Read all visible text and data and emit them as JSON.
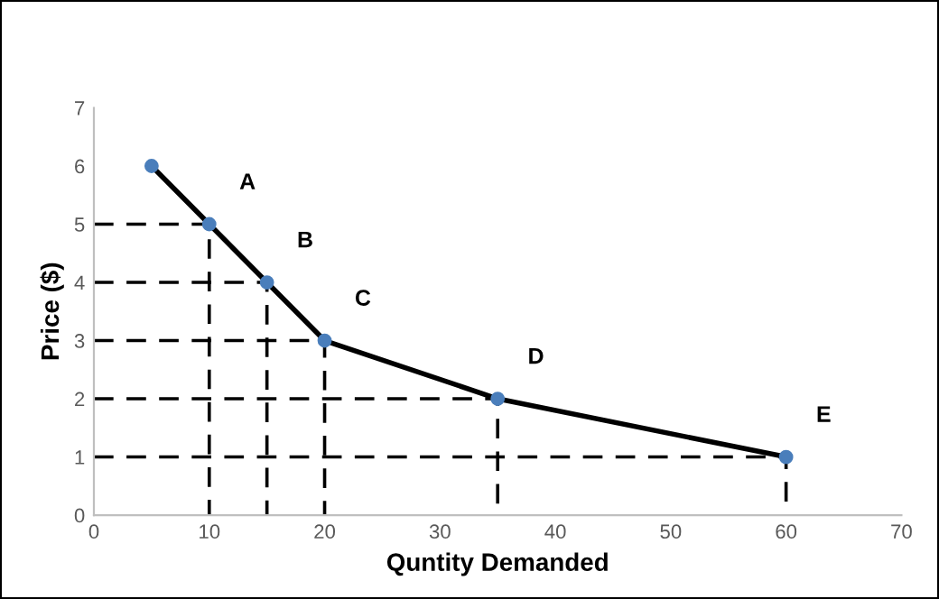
{
  "chart_data": {
    "type": "line",
    "xlabel": "Quntity Demanded",
    "ylabel": "Price ($)",
    "xlim": [
      0,
      70
    ],
    "xticks": [
      0,
      10,
      20,
      30,
      40,
      50,
      60,
      70
    ],
    "ylim": [
      0,
      7
    ],
    "yticks": [
      0,
      1,
      2,
      3,
      4,
      5,
      6,
      7
    ],
    "grid": false,
    "series": [
      {
        "color": "#000000",
        "marker": "none",
        "line_style": "solid",
        "x": [
          5,
          10,
          15,
          20,
          35,
          60
        ],
        "values": [
          6,
          5,
          4,
          3,
          2,
          1
        ]
      },
      {
        "color": "#000000",
        "marker": "none",
        "line_style": "dashed",
        "x": [
          0,
          10,
          10
        ],
        "values": [
          5,
          5,
          0
        ]
      },
      {
        "color": "#000000",
        "marker": "none",
        "line_style": "dashed",
        "x": [
          0,
          15,
          15
        ],
        "values": [
          4,
          4,
          0
        ]
      },
      {
        "color": "#000000",
        "marker": "none",
        "line_style": "dashed",
        "x": [
          0,
          20,
          20
        ],
        "values": [
          3,
          3,
          0
        ]
      },
      {
        "color": "#000000",
        "marker": "none",
        "line_style": "dashed",
        "x": [
          0,
          35,
          35
        ],
        "values": [
          2,
          2,
          0
        ]
      },
      {
        "color": "#000000",
        "marker": "none",
        "line_style": "dashed",
        "x": [
          0,
          60,
          60
        ],
        "values": [
          1,
          1,
          0
        ]
      },
      {
        "type": "scatter",
        "color": "#4a7ebb",
        "marker": "circle",
        "x": [
          5,
          10,
          15,
          20,
          35,
          60
        ],
        "values": [
          6,
          5,
          4,
          3,
          2,
          1
        ]
      }
    ],
    "annotations": [
      {
        "text": "A",
        "x": 10,
        "y": 5
      },
      {
        "text": "B",
        "x": 15,
        "y": 4
      },
      {
        "text": "C",
        "x": 20,
        "y": 3
      },
      {
        "text": "D",
        "x": 35,
        "y": 2
      },
      {
        "text": "E",
        "x": 60,
        "y": 1
      }
    ]
  }
}
